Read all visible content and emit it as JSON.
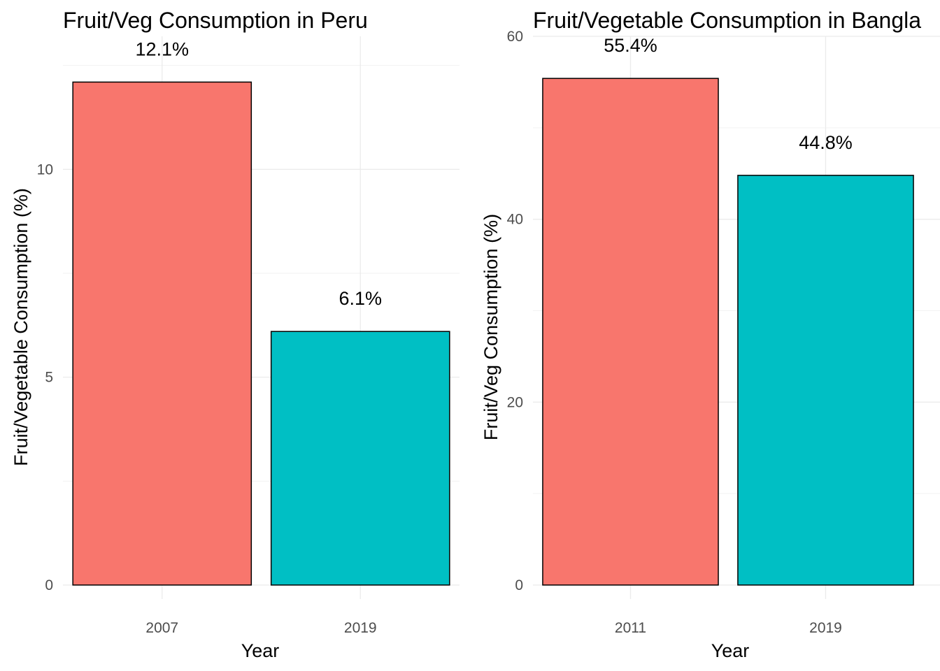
{
  "chart_data": [
    {
      "type": "bar",
      "title": "Fruit/Veg Consumption in Peru",
      "xlabel": "Year",
      "ylabel": "Fruit/Vegetable Consumption (%)",
      "categories": [
        "2007",
        "2019"
      ],
      "values": [
        12.1,
        6.1
      ],
      "data_labels": [
        "12.1%",
        "6.1%"
      ],
      "colors": [
        "#F8766D",
        "#00BFC4"
      ],
      "ylim": [
        0,
        13.2
      ],
      "yticks": [
        0,
        5,
        10
      ],
      "ytick_labels": [
        "0",
        "5",
        "10"
      ],
      "grid": true,
      "legend": "none"
    },
    {
      "type": "bar",
      "title": "Fruit/Vegetable Consumption in Bangla",
      "xlabel": "Year",
      "ylabel": "Fruit/Veg Consumption (%)",
      "categories": [
        "2011",
        "2019"
      ],
      "values": [
        55.4,
        44.8
      ],
      "data_labels": [
        "55.4%",
        "44.8%"
      ],
      "colors": [
        "#F8766D",
        "#00BFC4"
      ],
      "ylim": [
        0,
        60
      ],
      "yticks": [
        0,
        20,
        40,
        60
      ],
      "ytick_labels": [
        "0",
        "20",
        "40",
        "60"
      ],
      "grid": true,
      "legend": "none"
    }
  ]
}
